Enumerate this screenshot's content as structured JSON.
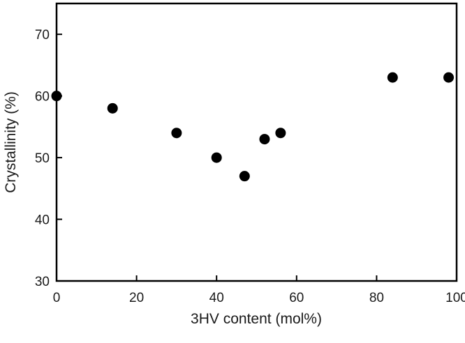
{
  "chart_data": {
    "type": "scatter",
    "title": "",
    "xlabel": "3HV content (mol%)",
    "ylabel": "Crystallinity (%)",
    "xlim": [
      0,
      100
    ],
    "ylim": [
      30,
      75
    ],
    "xticks": [
      "0",
      "20",
      "40",
      "60",
      "80",
      "100"
    ],
    "yticks": [
      "30",
      "40",
      "50",
      "60",
      "70"
    ],
    "grid": false,
    "marker_color": "#000000",
    "points": [
      {
        "x": 0,
        "y": 60
      },
      {
        "x": 14,
        "y": 58
      },
      {
        "x": 30,
        "y": 54
      },
      {
        "x": 40,
        "y": 50
      },
      {
        "x": 47,
        "y": 47
      },
      {
        "x": 52,
        "y": 53
      },
      {
        "x": 56,
        "y": 54
      },
      {
        "x": 84,
        "y": 63
      },
      {
        "x": 98,
        "y": 63
      }
    ]
  }
}
